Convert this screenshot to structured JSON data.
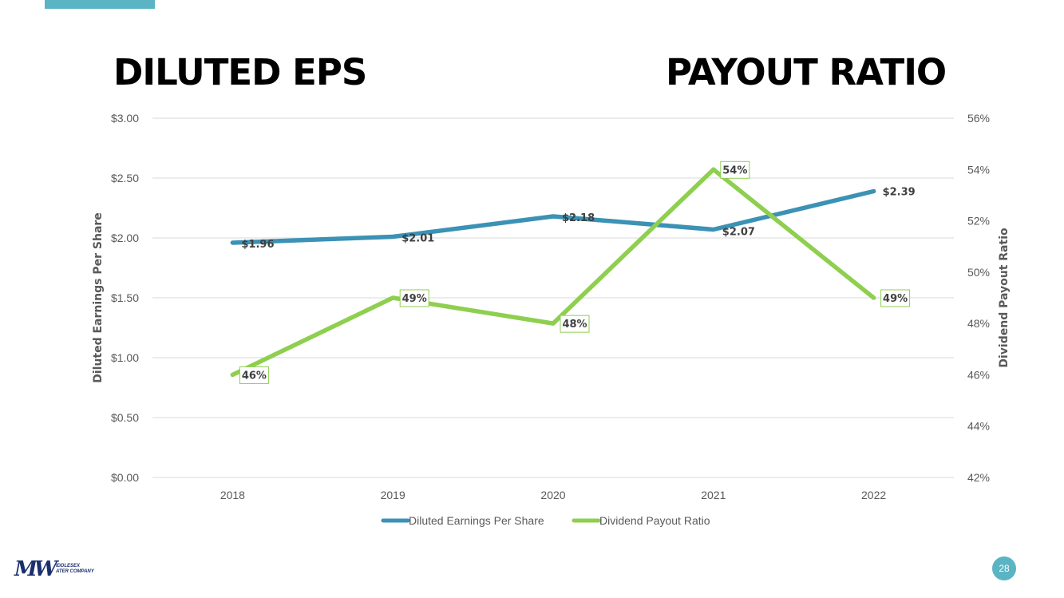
{
  "header": {
    "title_left": "DILUTED EPS",
    "title_right": "PAYOUT RATIO"
  },
  "chart_data": {
    "type": "line",
    "categories": [
      "2018",
      "2019",
      "2020",
      "2021",
      "2022"
    ],
    "y_left": {
      "label": "Diluted Earnings Per Share",
      "range": [
        0,
        3
      ],
      "ticks": [
        0,
        0.5,
        1,
        1.5,
        2,
        2.5,
        3
      ],
      "tick_labels": [
        "$0.00",
        "$0.50",
        "$1.00",
        "$1.50",
        "$2.00",
        "$2.50",
        "$3.00"
      ]
    },
    "y_right": {
      "label": "Dividend Payout Ratio",
      "range": [
        42,
        56
      ],
      "ticks": [
        42,
        44,
        46,
        48,
        50,
        52,
        54,
        56
      ],
      "tick_labels": [
        "42%",
        "44%",
        "46%",
        "48%",
        "50%",
        "52%",
        "54%",
        "56%"
      ]
    },
    "series": [
      {
        "name": "Diluted Earnings Per Share",
        "axis": "left",
        "color": "#3b92b5",
        "values": [
          1.96,
          2.01,
          2.18,
          2.07,
          2.39
        ],
        "labels": [
          "$1.96",
          "$2.01",
          "$2.18",
          "$2.07",
          "$2.39"
        ]
      },
      {
        "name": "Dividend Payout Ratio",
        "axis": "right",
        "color": "#8ecf4f",
        "values": [
          46,
          49,
          48,
          54,
          49
        ],
        "labels": [
          "46%",
          "49%",
          "48%",
          "54%",
          "49%"
        ]
      }
    ],
    "grid": true,
    "legend": "bottom"
  },
  "footer": {
    "logo_mark": "MW",
    "logo_line1": "IDDLESEX",
    "logo_line2": "ATER COMPANY",
    "page_number": "28"
  }
}
